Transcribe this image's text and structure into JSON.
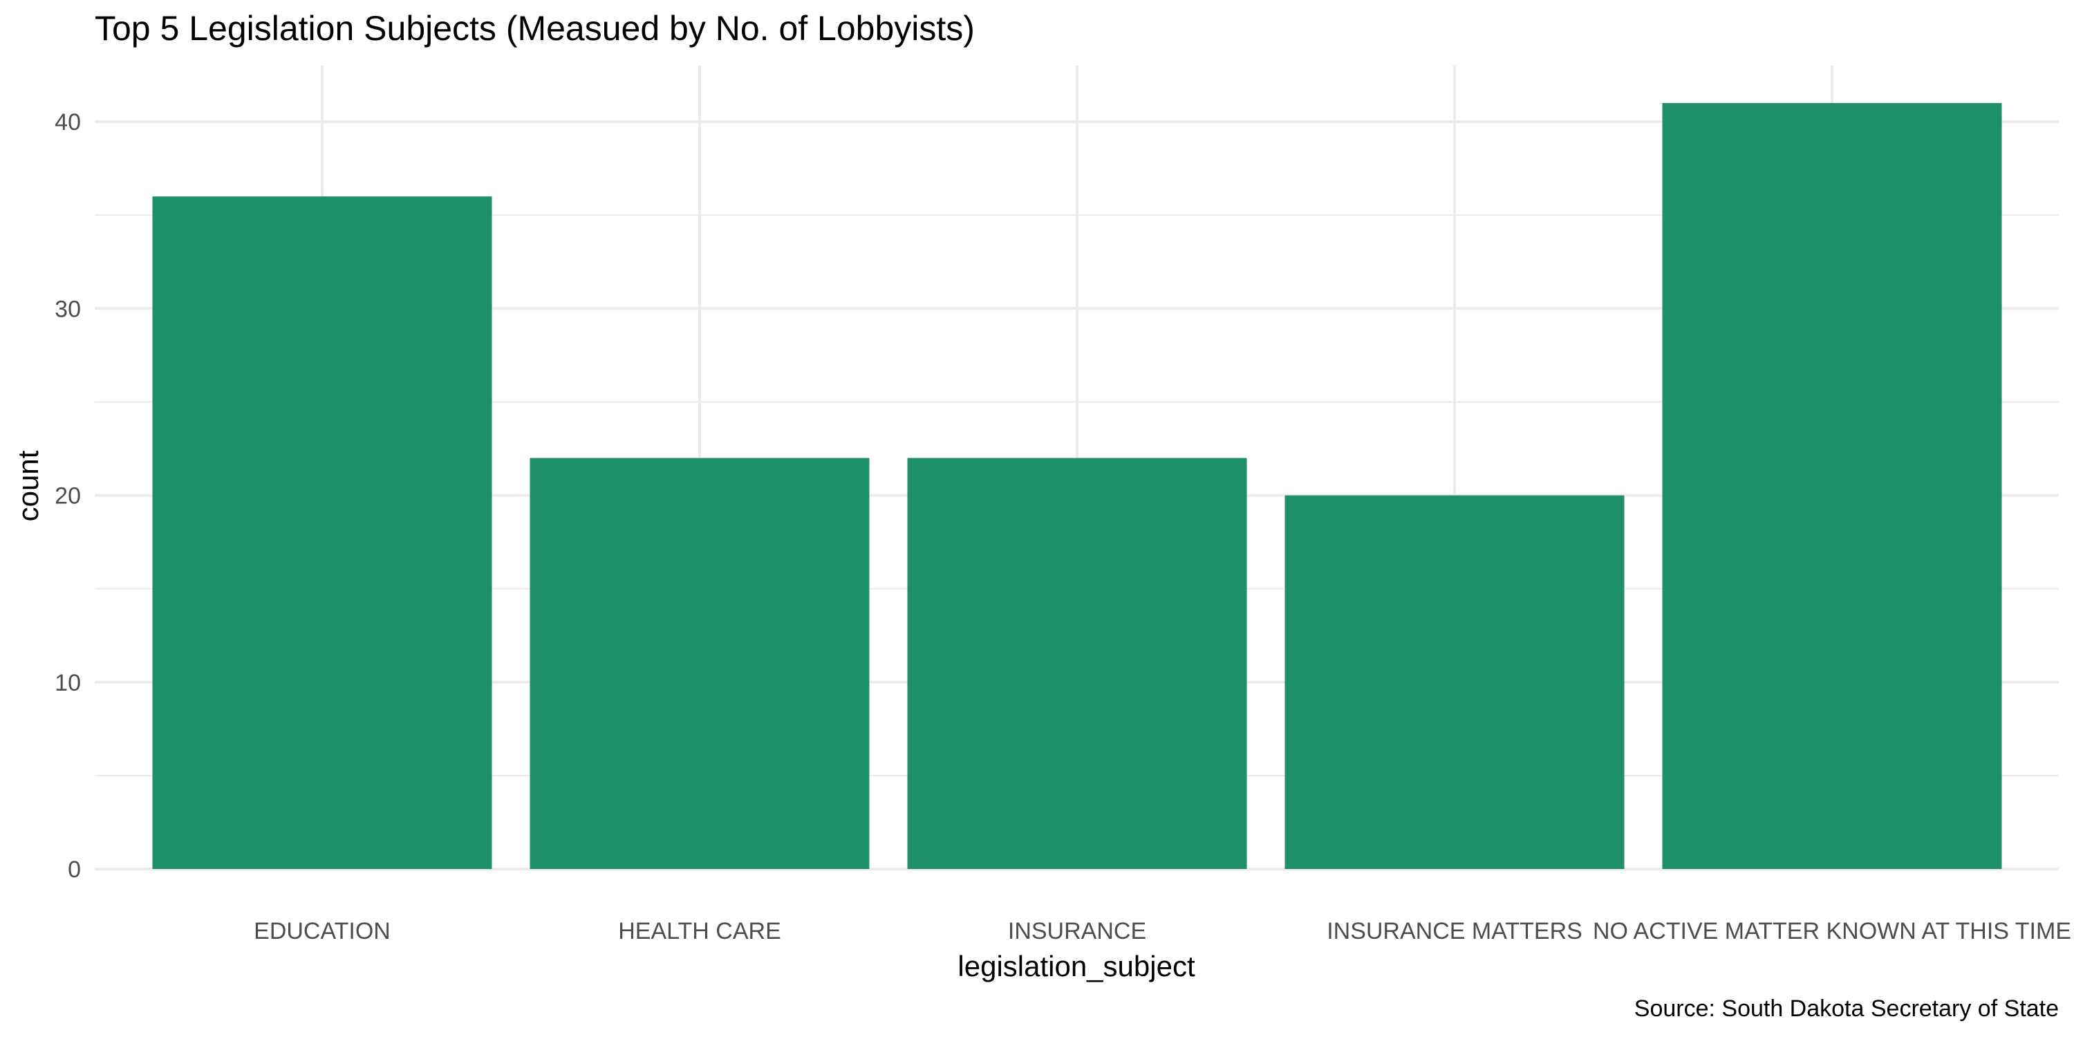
{
  "chart_data": {
    "type": "bar",
    "title": "Top 5 Legislation Subjects (Measued by No. of Lobbyists)",
    "xlabel": "legislation_subject",
    "ylabel": "count",
    "caption": "Source: South Dakota Secretary of State",
    "categories": [
      "EDUCATION",
      "HEALTH CARE",
      "INSURANCE",
      "INSURANCE MATTERS",
      "NO ACTIVE MATTER KNOWN AT THIS TIME"
    ],
    "values": [
      36,
      22,
      22,
      20,
      41
    ],
    "ylim": [
      0,
      43
    ],
    "yticks": [
      "0",
      "10",
      "20",
      "30",
      "40"
    ],
    "grid": true,
    "legend": "none",
    "bar_color": "#1e8f66",
    "grid_color": "#ebebeb",
    "background": "#ffffff"
  }
}
